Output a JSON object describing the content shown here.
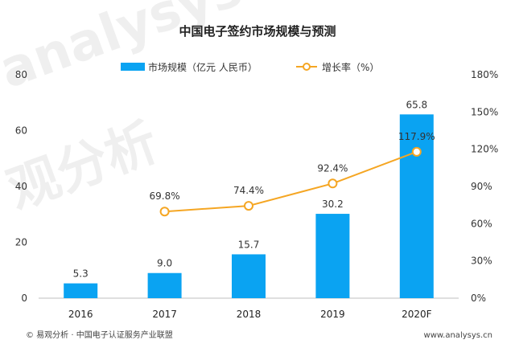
{
  "chart_data": {
    "type": "bar",
    "title": "中国电子签约市场规模与预测",
    "categories": [
      "2016",
      "2017",
      "2018",
      "2019",
      "2020F"
    ],
    "series": [
      {
        "name": "市场规模（亿元 人民币）",
        "type": "bar",
        "axis": "left",
        "color": "#0aa3f2",
        "values": [
          5.3,
          9.0,
          15.7,
          30.2,
          65.8
        ],
        "labels": [
          "5.3",
          "9.0",
          "15.7",
          "30.2",
          "65.8"
        ]
      },
      {
        "name": "增长率（%）",
        "type": "line",
        "axis": "right",
        "color": "#f5a623",
        "values": [
          null,
          69.8,
          74.4,
          92.4,
          117.9
        ],
        "labels": [
          "",
          "69.8%",
          "74.4%",
          "92.4%",
          "117.9%"
        ]
      }
    ],
    "y_left": {
      "min": 0,
      "max": 80,
      "ticks": [
        "0",
        "20",
        "40",
        "60",
        "80"
      ]
    },
    "y_right": {
      "min": 0,
      "max": 180,
      "ticks": [
        "0%",
        "30%",
        "60%",
        "90%",
        "120%",
        "150%",
        "180%"
      ]
    },
    "grid": false,
    "legend": "top"
  },
  "footer": {
    "source": "© 易观分析 · 中国电子认证服务产业联盟",
    "website": "www.analysys.cn"
  },
  "watermark": {
    "brand": "analysys",
    "chinese": "观分析"
  }
}
